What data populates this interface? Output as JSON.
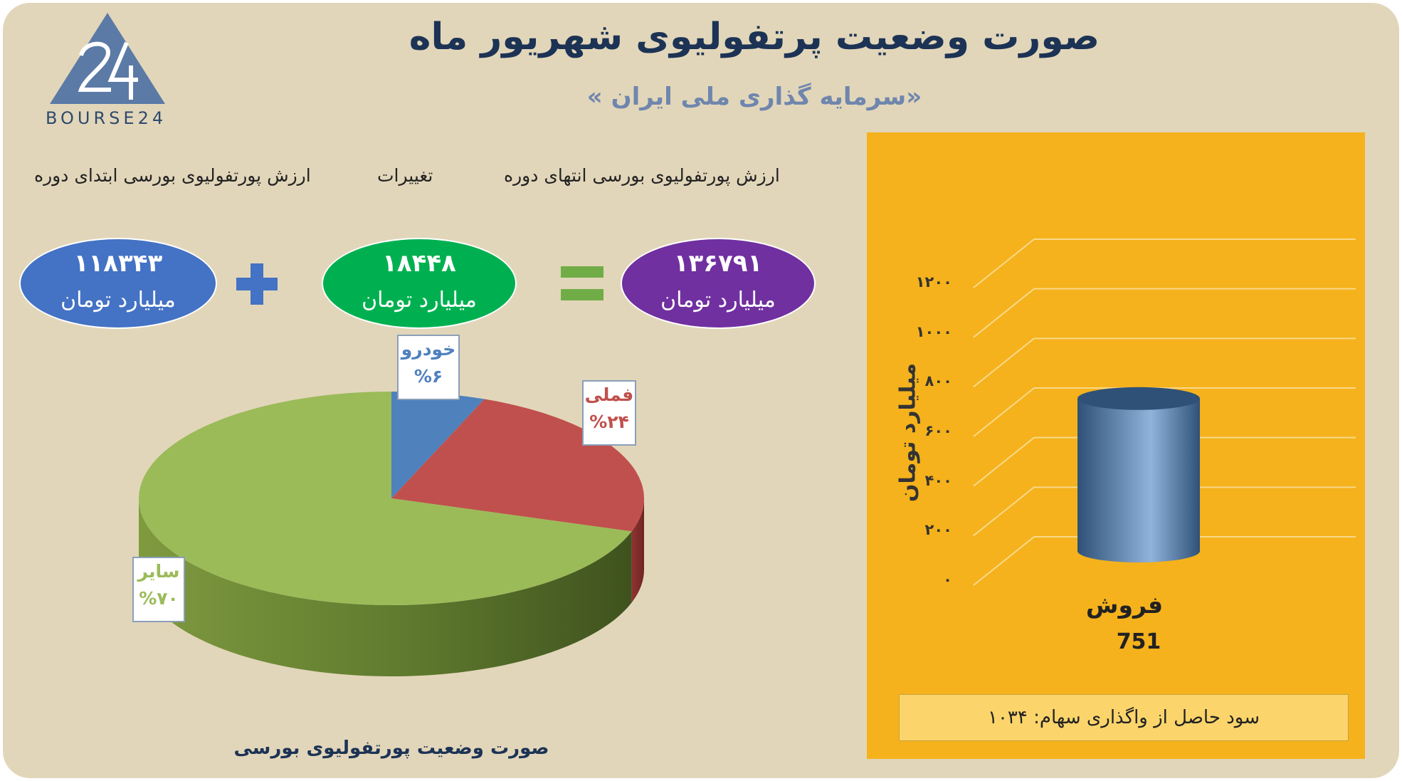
{
  "header": {
    "title": "صورت وضعیت پرتفولیوی شهریور ماه",
    "subtitle": "«سرمایه گذاری ملی ایران »"
  },
  "logo": {
    "text": "BOURSE24",
    "icon": "bourse24-logo-icon",
    "color": "#5b7aa6"
  },
  "equation": {
    "labels": {
      "start": "ارزش پورتفولیوی بورسی ابتدای دوره",
      "change": "تغییرات",
      "end": "ارزش پورتفولیوی بورسی انتهای دوره"
    },
    "start": {
      "value": "۱۱۸۳۴۳",
      "unit": "میلیارد تومان",
      "color": "#4472c4"
    },
    "change": {
      "value": "۱۸۴۴۸",
      "unit": "میلیارد تومان",
      "color": "#00b050"
    },
    "end": {
      "value": "۱۳۶۷۹۱",
      "unit": "میلیارد تومان",
      "color": "#7030a0"
    },
    "plus_icon": "plus-icon",
    "equals_icon": "equals-icon",
    "operator_colors": {
      "plus": "#4472c4",
      "equals": "#70ad47"
    }
  },
  "chart_data": [
    {
      "type": "pie",
      "title": "صورت وضعیت پورتفولیوی بورسی",
      "slices": [
        {
          "label": "خودرو",
          "value_label": "%۶",
          "value": 6,
          "color": "#4f81bd",
          "label_color": "#4f81bd"
        },
        {
          "label": "فملی",
          "value_label": "%۲۴",
          "value": 24,
          "color": "#c0504d",
          "label_color": "#c0504d"
        },
        {
          "label": "سایر",
          "value_label": "%۷۰",
          "value": 70,
          "color": "#9bbb59",
          "label_color": "#9bbb59"
        }
      ]
    },
    {
      "type": "bar",
      "categories": [
        "فروش"
      ],
      "values": [
        751
      ],
      "value_labels": [
        "751"
      ],
      "ylabel": "میلیارد تومان",
      "ylim": [
        0,
        1200
      ],
      "yticks": [
        0,
        200,
        400,
        600,
        800,
        1000,
        1200
      ],
      "ytick_labels": [
        "۰",
        "۲۰۰",
        "۴۰۰",
        "۶۰۰",
        "۸۰۰",
        "۱۰۰۰",
        "۱۲۰۰"
      ],
      "bar_color": "#4f81bd",
      "background": "#f5b21c",
      "grid": true,
      "note": "سود حاصل از واگذاری سهام: ۱۰۳۴"
    }
  ]
}
